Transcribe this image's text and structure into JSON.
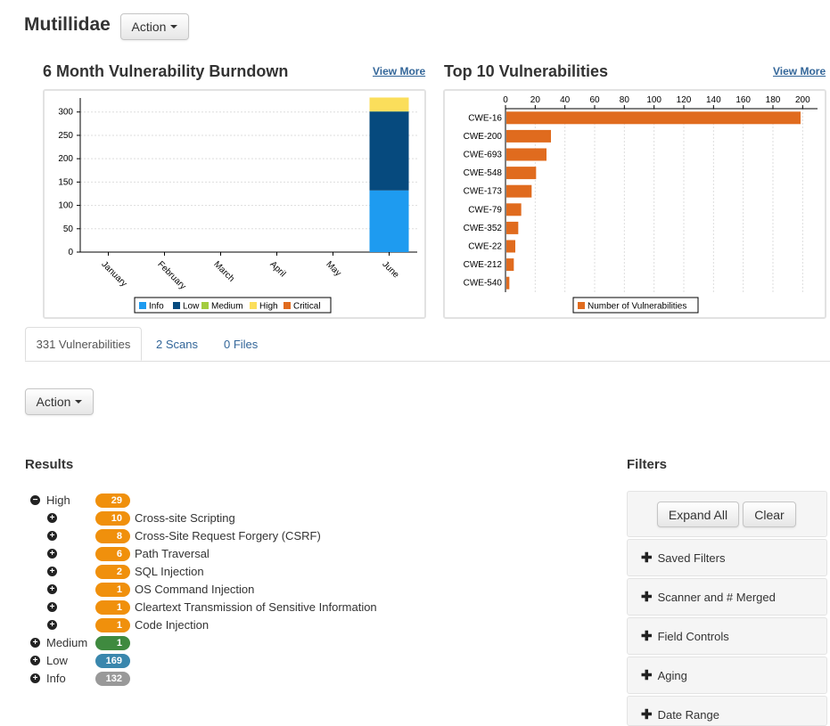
{
  "app": {
    "title": "Mutillidae",
    "action_label": "Action"
  },
  "burndown": {
    "title": "6 Month Vulnerability Burndown",
    "view_more": "View More",
    "legend": [
      {
        "label": "Info",
        "color": "#1e9bf0"
      },
      {
        "label": "Low",
        "color": "#064a7e"
      },
      {
        "label": "Medium",
        "color": "#a3cc3f"
      },
      {
        "label": "High",
        "color": "#fbde5b"
      },
      {
        "label": "Critical",
        "color": "#e06b1e"
      }
    ]
  },
  "top10": {
    "title": "Top 10 Vulnerabilities",
    "view_more": "View More",
    "legend_label": "Number of Vulnerabilities",
    "bar_color": "#e06b1e"
  },
  "chart_data": [
    {
      "type": "bar",
      "stacked": true,
      "title": "6 Month Vulnerability Burndown",
      "categories": [
        "January",
        "February",
        "March",
        "April",
        "May",
        "June"
      ],
      "ylim": [
        0,
        330
      ],
      "yticks": [
        0,
        50,
        100,
        150,
        200,
        250,
        300
      ],
      "grid": true,
      "legend_position": "bottom",
      "series": [
        {
          "name": "Info",
          "values": [
            0,
            0,
            0,
            0,
            0,
            132
          ]
        },
        {
          "name": "Low",
          "values": [
            0,
            0,
            0,
            0,
            0,
            169
          ]
        },
        {
          "name": "Medium",
          "values": [
            0,
            0,
            0,
            0,
            0,
            1
          ]
        },
        {
          "name": "High",
          "values": [
            0,
            0,
            0,
            0,
            0,
            29
          ]
        },
        {
          "name": "Critical",
          "values": [
            0,
            0,
            0,
            0,
            0,
            0
          ]
        }
      ]
    },
    {
      "type": "bar",
      "orientation": "horizontal",
      "title": "Top 10 Vulnerabilities",
      "categories": [
        "CWE-16",
        "CWE-200",
        "CWE-693",
        "CWE-548",
        "CWE-173",
        "CWE-79",
        "CWE-352",
        "CWE-22",
        "CWE-212",
        "CWE-540"
      ],
      "values": [
        198,
        30,
        27,
        20,
        17,
        10,
        8,
        6,
        5,
        2
      ],
      "xlim": [
        0,
        210
      ],
      "xticks": [
        0,
        20,
        40,
        60,
        80,
        100,
        120,
        140,
        160,
        180,
        200
      ],
      "grid": true,
      "legend_position": "bottom",
      "series": [
        {
          "name": "Number of Vulnerabilities"
        }
      ]
    }
  ],
  "tabs": [
    {
      "label": "331 Vulnerabilities"
    },
    {
      "label": "2 Scans"
    },
    {
      "label": "0 Files"
    }
  ],
  "toolbar": {
    "action_label": "Action"
  },
  "results": {
    "heading": "Results",
    "rows": [
      {
        "label": "High",
        "count": "29",
        "expand": "−",
        "color": "#f0900c",
        "indent": false
      },
      {
        "label": "Cross-site Scripting",
        "count": "10",
        "expand": "+",
        "color": "#f0900c",
        "indent": true
      },
      {
        "label": "Cross-Site Request Forgery (CSRF)",
        "count": "8",
        "expand": "+",
        "color": "#f0900c",
        "indent": true
      },
      {
        "label": "Path Traversal",
        "count": "6",
        "expand": "+",
        "color": "#f0900c",
        "indent": true
      },
      {
        "label": "SQL Injection",
        "count": "2",
        "expand": "+",
        "color": "#f0900c",
        "indent": true
      },
      {
        "label": "OS Command Injection",
        "count": "1",
        "expand": "+",
        "color": "#f0900c",
        "indent": true
      },
      {
        "label": "Cleartext Transmission of Sensitive Information",
        "count": "1",
        "expand": "+",
        "color": "#f0900c",
        "indent": true
      },
      {
        "label": "Code Injection",
        "count": "1",
        "expand": "+",
        "color": "#f0900c",
        "indent": true
      },
      {
        "label": "Medium",
        "count": "1",
        "expand": "+",
        "color": "#3f8a3f",
        "indent": false
      },
      {
        "label": "Low",
        "count": "169",
        "expand": "+",
        "color": "#3a87ad",
        "indent": false
      },
      {
        "label": "Info",
        "count": "132",
        "expand": "+",
        "color": "#999999",
        "indent": false
      }
    ]
  },
  "filters": {
    "heading": "Filters",
    "expand_all": "Expand All",
    "clear": "Clear",
    "items": [
      {
        "label": "Saved Filters"
      },
      {
        "label": "Scanner and # Merged"
      },
      {
        "label": "Field Controls"
      },
      {
        "label": "Aging"
      },
      {
        "label": "Date Range"
      }
    ]
  }
}
